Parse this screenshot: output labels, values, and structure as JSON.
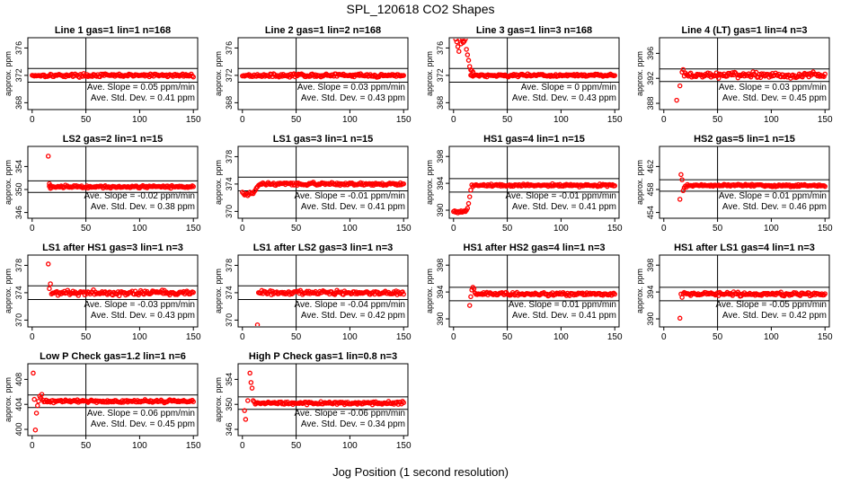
{
  "figure": {
    "title": "SPL_120618  CO2 Shapes",
    "xlabel": "Jog Position (1 second resolution)"
  },
  "colors": {
    "points": "#ff0000",
    "axes": "#000000"
  },
  "chart_data": [
    {
      "type": "scatter",
      "title": "Line 1 gas=1 lin=1 n=168",
      "ylabel": "approx. ppm",
      "xlim": [
        -4,
        154
      ],
      "ylim": [
        367,
        377.5
      ],
      "yticks": [
        368,
        372,
        376
      ],
      "xticks": [
        0,
        50,
        100,
        150
      ],
      "hlines": [
        373,
        371
      ],
      "vline": 50,
      "flat": 372,
      "noise": 0.18,
      "start": 0,
      "initial": [],
      "extra": [],
      "slope_text": "Ave. Slope = 0.05 ppm/min",
      "std_text": "Ave. Std. Dev. = 0.41 ppm"
    },
    {
      "type": "scatter",
      "title": "Line 2 gas=1 lin=2 n=168",
      "ylabel": "approx. ppm",
      "xlim": [
        -4,
        154
      ],
      "ylim": [
        367,
        377.5
      ],
      "yticks": [
        368,
        372,
        376
      ],
      "xticks": [
        0,
        50,
        100,
        150
      ],
      "hlines": [
        373,
        371
      ],
      "vline": 50,
      "flat": 372,
      "noise": 0.18,
      "start": 0,
      "initial": [],
      "extra": [],
      "slope_text": "Ave. Slope = 0.03 ppm/min",
      "std_text": "Ave. Std. Dev. = 0.43 ppm"
    },
    {
      "type": "scatter",
      "title": "Line 3 gas=1 lin=3 n=168",
      "ylabel": "approx. ppm",
      "xlim": [
        -4,
        154
      ],
      "ylim": [
        367,
        377.5
      ],
      "yticks": [
        368,
        372,
        376
      ],
      "xticks": [
        0,
        50,
        100,
        150
      ],
      "hlines": [
        373,
        371
      ],
      "vline": 50,
      "flat": 372,
      "noise": 0.16,
      "start": 16,
      "initial": [
        [
          2,
          377.3
        ],
        [
          3,
          376.9
        ],
        [
          4,
          376.2
        ],
        [
          5,
          375.5
        ],
        [
          6,
          377.3
        ],
        [
          7,
          376.6
        ],
        [
          8,
          377.4
        ],
        [
          9,
          376.8
        ],
        [
          10,
          377.0
        ],
        [
          11,
          377.3
        ],
        [
          12,
          375.8
        ],
        [
          13,
          375.0
        ],
        [
          14,
          374.2
        ],
        [
          15,
          373.3
        ],
        [
          16,
          372.8
        ],
        [
          17,
          372.7
        ],
        [
          18,
          372.5
        ]
      ],
      "extra": [],
      "slope_text": "Ave. Slope = 0 ppm/min",
      "std_text": "Ave. Std. Dev. = 0.43 ppm"
    },
    {
      "type": "scatter",
      "title": "Line 4 (LT) gas=1 lin=4 n=3",
      "ylabel": "approx. ppm",
      "xlim": [
        -4,
        154
      ],
      "ylim": [
        387,
        398.5
      ],
      "yticks": [
        388,
        392,
        396
      ],
      "xticks": [
        0,
        50,
        100,
        150
      ],
      "hlines": [
        393.5,
        391.5
      ],
      "vline": 50,
      "flat": 392.5,
      "noise": 0.35,
      "start": 19,
      "initial": [
        [
          12,
          388.5
        ],
        [
          15,
          390.8
        ],
        [
          17,
          393.0
        ],
        [
          18,
          393.4
        ]
      ],
      "extra": [],
      "slope_text": "Ave. Slope = 0.03 ppm/min",
      "std_text": "Ave. Std. Dev. = 0.45 ppm"
    },
    {
      "type": "scatter",
      "title": "LS2 gas=2 lin=1 n=15",
      "ylabel": "approx. ppm",
      "xlim": [
        -4,
        154
      ],
      "ylim": [
        345,
        357.5
      ],
      "yticks": [
        346,
        350,
        354
      ],
      "xticks": [
        0,
        50,
        100,
        150
      ],
      "hlines": [
        351.5,
        349.5
      ],
      "vline": 50,
      "flat": 350.5,
      "noise": 0.18,
      "start": 16,
      "initial": [
        [
          15,
          355.8
        ],
        [
          16,
          351.0
        ],
        [
          17,
          350.2
        ]
      ],
      "extra": [],
      "slope_text": "Ave. Slope = -0.02 ppm/min",
      "std_text": "Ave. Std. Dev. = 0.38 ppm"
    },
    {
      "type": "scatter",
      "title": "LS1 gas=3 lin=1 n=15",
      "ylabel": "approx. ppm",
      "xlim": [
        -4,
        154
      ],
      "ylim": [
        369,
        379.5
      ],
      "yticks": [
        370,
        374,
        378
      ],
      "xticks": [
        0,
        50,
        100,
        150
      ],
      "hlines": [
        375,
        373
      ],
      "vline": 50,
      "flat": 374,
      "noise": 0.17,
      "start": 18,
      "initial": [
        [
          0,
          372.8
        ],
        [
          1,
          372.6
        ],
        [
          2,
          372.4
        ],
        [
          3,
          372.5
        ],
        [
          4,
          372.6
        ],
        [
          5,
          372.3
        ],
        [
          6,
          372.5
        ],
        [
          7,
          372.8
        ],
        [
          8,
          372.6
        ],
        [
          9,
          372.7
        ],
        [
          10,
          372.6
        ],
        [
          11,
          372.9
        ],
        [
          12,
          373.1
        ],
        [
          13,
          373.4
        ],
        [
          14,
          373.6
        ],
        [
          15,
          373.8
        ],
        [
          16,
          373.9
        ],
        [
          17,
          374.0
        ]
      ],
      "extra": [],
      "slope_text": "Ave. Slope = -0.01 ppm/min",
      "std_text": "Ave. Std. Dev. = 0.41 ppm"
    },
    {
      "type": "scatter",
      "title": "HS1 gas=4 lin=1 n=15",
      "ylabel": "approx. ppm",
      "xlim": [
        -4,
        154
      ],
      "ylim": [
        388.8,
        399.5
      ],
      "yticks": [
        390,
        394,
        398
      ],
      "xticks": [
        0,
        50,
        100,
        150
      ],
      "hlines": [
        394.7,
        392.7
      ],
      "vline": 50,
      "flat": 393.7,
      "noise": 0.14,
      "start": 17,
      "initial": [
        [
          0,
          389.8
        ],
        [
          1,
          389.9
        ],
        [
          2,
          389.7
        ],
        [
          3,
          389.8
        ],
        [
          4,
          389.6
        ],
        [
          5,
          389.8
        ],
        [
          6,
          389.7
        ],
        [
          7,
          389.9
        ],
        [
          8,
          389.7
        ],
        [
          9,
          389.8
        ],
        [
          10,
          389.9
        ],
        [
          11,
          389.8
        ],
        [
          12,
          390.0
        ],
        [
          13,
          390.3
        ],
        [
          14,
          391.0
        ],
        [
          15,
          392.0
        ],
        [
          16,
          393.0
        ]
      ],
      "extra": [],
      "slope_text": "Ave. Slope = -0.01 ppm/min",
      "std_text": "Ave. Std. Dev. = 0.41 ppm"
    },
    {
      "type": "scatter",
      "title": "HS2 gas=5 lin=1 n=15",
      "ylabel": "approx. ppm",
      "xlim": [
        -4,
        154
      ],
      "ylim": [
        453,
        465.5
      ],
      "yticks": [
        454,
        458,
        462
      ],
      "xticks": [
        0,
        50,
        100,
        150
      ],
      "hlines": [
        459.7,
        457.7
      ],
      "vline": 50,
      "flat": 458.7,
      "noise": 0.15,
      "start": 22,
      "initial": [
        [
          15,
          456.3
        ],
        [
          16,
          460.6
        ],
        [
          17,
          459.7
        ],
        [
          18,
          457.8
        ],
        [
          19,
          458.3
        ],
        [
          20,
          458.6
        ],
        [
          21,
          458.4
        ]
      ],
      "extra": [],
      "slope_text": "Ave. Slope = 0.01 ppm/min",
      "std_text": "Ave. Std. Dev. = 0.46 ppm"
    },
    {
      "type": "scatter",
      "title": "LS1 after HS1 gas=3 lin=1 n=3",
      "ylabel": "approx. ppm",
      "xlim": [
        -4,
        154
      ],
      "ylim": [
        369,
        379.5
      ],
      "yticks": [
        370,
        374,
        378
      ],
      "xticks": [
        0,
        50,
        100,
        150
      ],
      "hlines": [
        375,
        373
      ],
      "vline": 50,
      "flat": 374,
      "noise": 0.3,
      "start": 18,
      "initial": [
        [
          15,
          378.2
        ],
        [
          16,
          374.6
        ],
        [
          17,
          375.3
        ]
      ],
      "extra": [],
      "slope_text": "Ave. Slope = -0.03 ppm/min",
      "std_text": "Ave. Std. Dev. = 0.43 ppm"
    },
    {
      "type": "scatter",
      "title": "LS1 after LS2 gas=3 lin=1 n=3",
      "ylabel": "approx. ppm",
      "xlim": [
        -4,
        154
      ],
      "ylim": [
        369,
        379.5
      ],
      "yticks": [
        370,
        374,
        378
      ],
      "xticks": [
        0,
        50,
        100,
        150
      ],
      "hlines": [
        375,
        373
      ],
      "vline": 50,
      "flat": 374,
      "noise": 0.25,
      "start": 15,
      "initial": [
        [
          14,
          369.3
        ]
      ],
      "extra": [],
      "slope_text": "Ave. Slope = -0.04 ppm/min",
      "std_text": "Ave. Std. Dev. = 0.42 ppm"
    },
    {
      "type": "scatter",
      "title": "HS1 after HS2 gas=4 lin=1 n=3",
      "ylabel": "approx. ppm",
      "xlim": [
        -4,
        154
      ],
      "ylim": [
        388.8,
        399.5
      ],
      "yticks": [
        390,
        394,
        398
      ],
      "xticks": [
        0,
        50,
        100,
        150
      ],
      "hlines": [
        394.7,
        392.7
      ],
      "vline": 50,
      "flat": 393.7,
      "noise": 0.2,
      "start": 20,
      "initial": [
        [
          15,
          392.0
        ],
        [
          16,
          393.3
        ],
        [
          17,
          394.3
        ],
        [
          18,
          394.7
        ],
        [
          19,
          394.5
        ]
      ],
      "extra": [],
      "slope_text": "Ave. Slope = 0.01 ppm/min",
      "std_text": "Ave. Std. Dev. = 0.41 ppm"
    },
    {
      "type": "scatter",
      "title": "HS1 after LS1 gas=4 lin=1 n=3",
      "ylabel": "approx. ppm",
      "xlim": [
        -4,
        154
      ],
      "ylim": [
        388.8,
        399.5
      ],
      "yticks": [
        390,
        394,
        398
      ],
      "xticks": [
        0,
        50,
        100,
        150
      ],
      "hlines": [
        394.7,
        392.7
      ],
      "vline": 50,
      "flat": 393.7,
      "noise": 0.22,
      "start": 18,
      "initial": [
        [
          15,
          390.1
        ],
        [
          16,
          393.7
        ],
        [
          17,
          393.2
        ]
      ],
      "extra": [],
      "slope_text": "Ave. Slope = -0.05 ppm/min",
      "std_text": "Ave. Std. Dev. = 0.42 ppm"
    },
    {
      "type": "scatter",
      "title": "Low P Check gas=1.2 lin=1 n=6",
      "ylabel": "approx. ppm",
      "xlim": [
        -4,
        154
      ],
      "ylim": [
        399,
        410.5
      ],
      "yticks": [
        400,
        404,
        408
      ],
      "xticks": [
        0,
        50,
        100,
        150
      ],
      "hlines": [
        405.5,
        403.5
      ],
      "vline": 50,
      "flat": 404.5,
      "noise": 0.17,
      "start": 12,
      "initial": [
        [
          1,
          409.0
        ],
        [
          2,
          404.8
        ],
        [
          3,
          399.9
        ],
        [
          4,
          402.6
        ],
        [
          5,
          403.8
        ],
        [
          6,
          404.5
        ],
        [
          7,
          405.3
        ],
        [
          8,
          405.0
        ],
        [
          9,
          405.6
        ],
        [
          10,
          404.7
        ],
        [
          11,
          404.4
        ]
      ],
      "extra": [],
      "slope_text": "Ave. Slope = 0.06 ppm/min",
      "std_text": "Ave. Std. Dev. = 0.45 ppm"
    },
    {
      "type": "scatter",
      "title": "High P Check gas=1 lin=0.8 n=3",
      "ylabel": "approx. ppm",
      "xlim": [
        -4,
        154
      ],
      "ylim": [
        345,
        356.5
      ],
      "yticks": [
        346,
        350,
        354
      ],
      "xticks": [
        0,
        50,
        100,
        150
      ],
      "hlines": [
        351.2,
        349.2
      ],
      "vline": 50,
      "flat": 350.2,
      "noise": 0.18,
      "start": 12,
      "initial": [
        [
          2,
          349.0
        ],
        [
          3,
          347.6
        ],
        [
          5,
          350.6
        ],
        [
          7,
          355.0
        ],
        [
          8,
          353.5
        ],
        [
          9,
          352.6
        ],
        [
          10,
          350.6
        ],
        [
          11,
          350.4
        ]
      ],
      "extra": [],
      "slope_text": "Ave. Slope = -0.06 ppm/min",
      "std_text": "Ave. Std. Dev. = 0.34 ppm"
    }
  ]
}
